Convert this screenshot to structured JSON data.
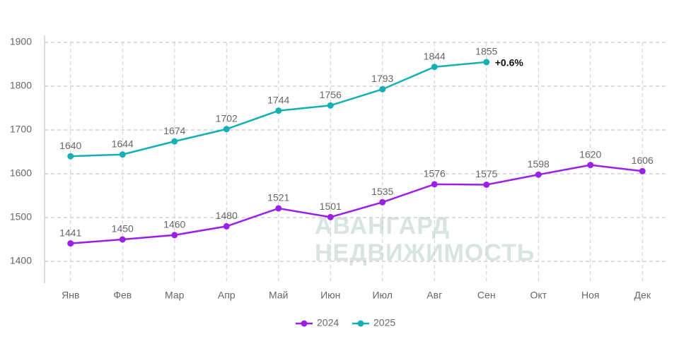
{
  "chart_data": {
    "type": "line",
    "categories": [
      "Янв",
      "Фев",
      "Мар",
      "Апр",
      "Май",
      "Июн",
      "Июл",
      "Авг",
      "Сен",
      "Окт",
      "Ноя",
      "Дек"
    ],
    "series": [
      {
        "name": "2024",
        "color": "#9b1fe8",
        "values": [
          1441,
          1450,
          1460,
          1480,
          1521,
          1501,
          1535,
          1576,
          1575,
          1598,
          1620,
          1606
        ]
      },
      {
        "name": "2025",
        "color": "#14b0b6",
        "values": [
          1640,
          1644,
          1674,
          1702,
          1744,
          1756,
          1793,
          1844,
          1855,
          null,
          null,
          null
        ]
      }
    ],
    "annotation": "+0.6%",
    "watermark": [
      "АВАНГАРД",
      "НЕДВИЖИМОСТЬ"
    ],
    "ylim": [
      1350,
      1900
    ],
    "yticks": [
      1400,
      1500,
      1600,
      1700,
      1800,
      1900
    ],
    "grid": true,
    "legend": "bottom"
  }
}
